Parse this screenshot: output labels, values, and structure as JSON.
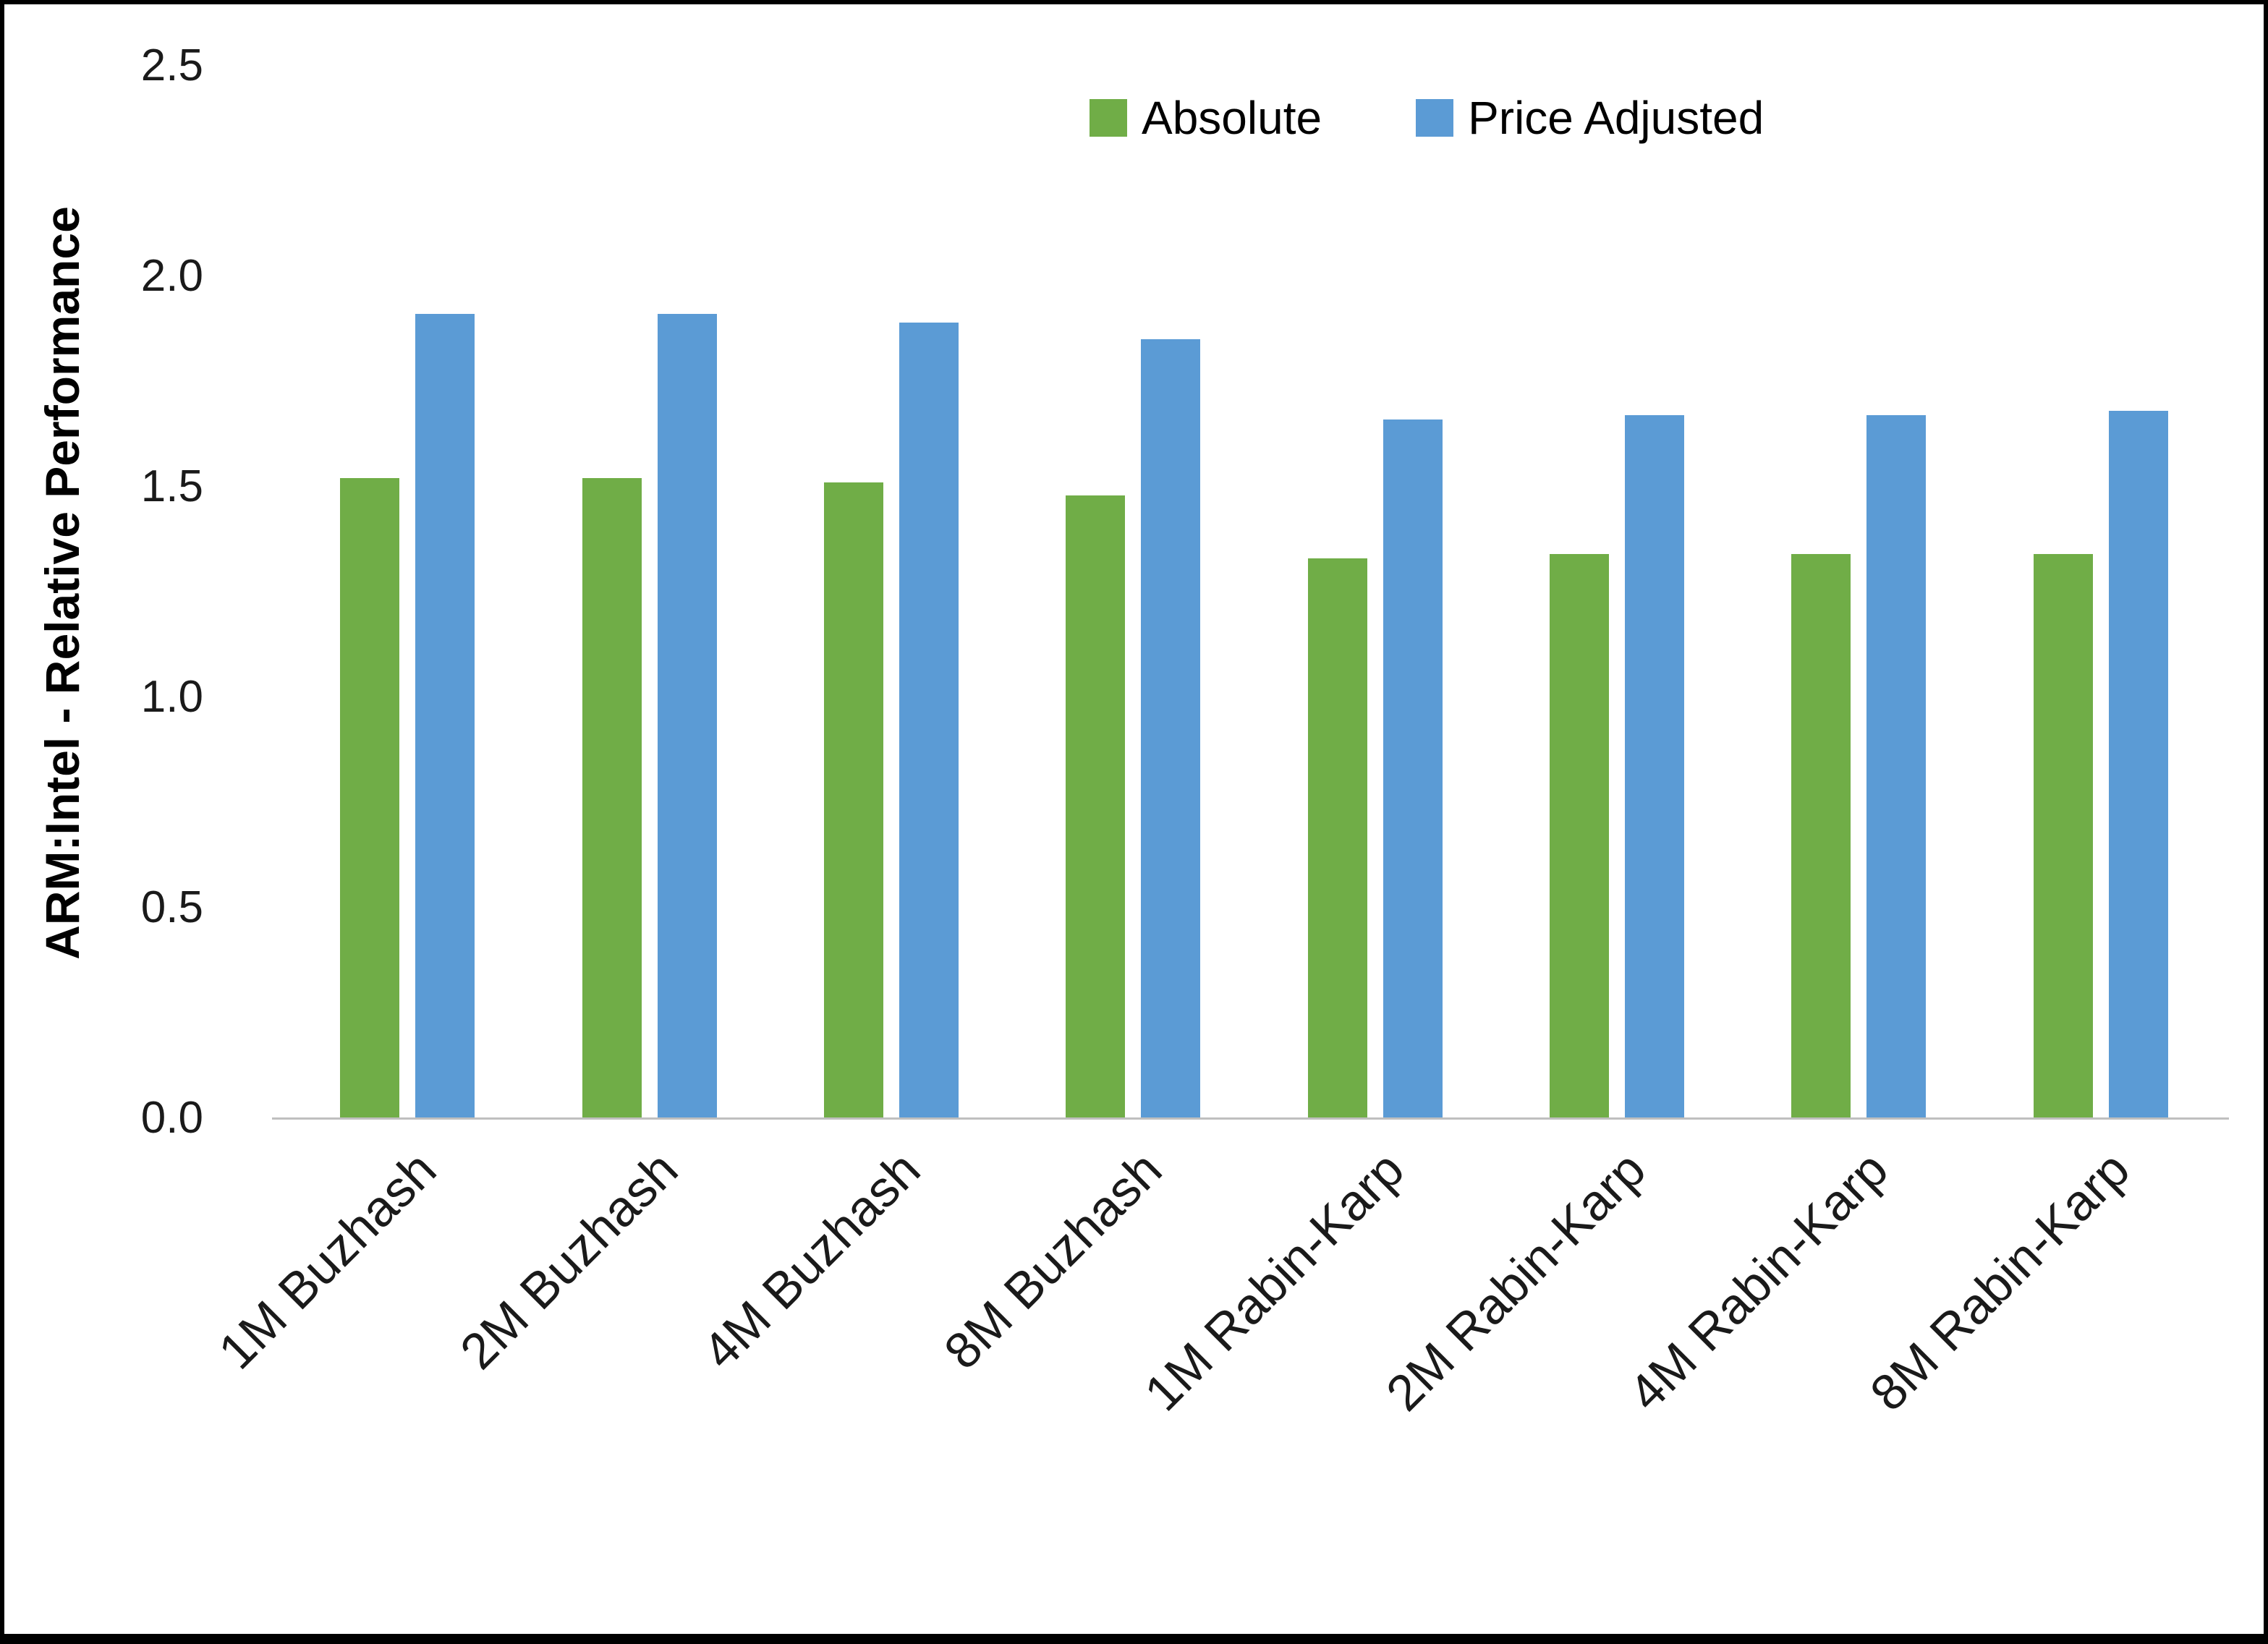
{
  "chart_data": {
    "type": "bar",
    "title": "",
    "xlabel": "",
    "ylabel": "ARM:Intel - Relative Performance",
    "ylim": [
      0,
      2.5
    ],
    "yticks": [
      "0.0",
      "0.5",
      "1.0",
      "1.5",
      "2.0",
      "2.5"
    ],
    "grid": false,
    "legend_position": "top-right",
    "categories": [
      "1M Buzhash",
      "2M Buzhash",
      "4M Buzhash",
      "8M Buzhash",
      "1M Rabin-Karp",
      "2M Rabin-Karp",
      "4M Rabin-Karp",
      "8M Rabin-Karp"
    ],
    "series": [
      {
        "name": "Absolute",
        "color": "#70AD47",
        "values": [
          1.52,
          1.52,
          1.51,
          1.48,
          1.33,
          1.34,
          1.34,
          1.34
        ]
      },
      {
        "name": "Price Adjusted",
        "color": "#5B9BD5",
        "values": [
          1.91,
          1.91,
          1.89,
          1.85,
          1.66,
          1.67,
          1.67,
          1.68
        ]
      }
    ]
  }
}
